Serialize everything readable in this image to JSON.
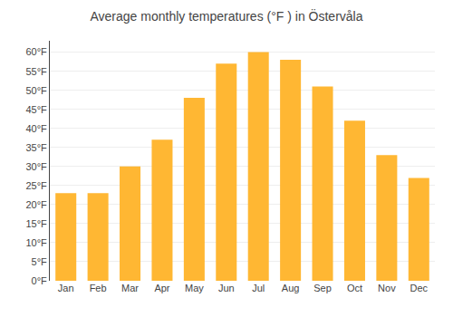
{
  "chart_data": {
    "type": "bar",
    "title": "Average monthly temperatures (°F ) in Östervåla",
    "categories": [
      "Jan",
      "Feb",
      "Mar",
      "Apr",
      "May",
      "Jun",
      "Jul",
      "Aug",
      "Sep",
      "Oct",
      "Nov",
      "Dec"
    ],
    "values": [
      23,
      23,
      30,
      37,
      48,
      57,
      60,
      58,
      51,
      42,
      33,
      27
    ],
    "color": "#FFB733",
    "ylim": [
      0,
      63
    ],
    "yticks": [
      {
        "value": 0,
        "label": "0°F"
      },
      {
        "value": 5,
        "label": "5°F"
      },
      {
        "value": 10,
        "label": "10°F"
      },
      {
        "value": 15,
        "label": "15°F"
      },
      {
        "value": 20,
        "label": "20°F"
      },
      {
        "value": 25,
        "label": "25°F"
      },
      {
        "value": 30,
        "label": "30°F"
      },
      {
        "value": 35,
        "label": "35°F"
      },
      {
        "value": 40,
        "label": "40°F"
      },
      {
        "value": 45,
        "label": "45°F"
      },
      {
        "value": 50,
        "label": "50°F"
      },
      {
        "value": 55,
        "label": "55°F"
      },
      {
        "value": 60,
        "label": "60°F"
      }
    ],
    "grid": true
  }
}
